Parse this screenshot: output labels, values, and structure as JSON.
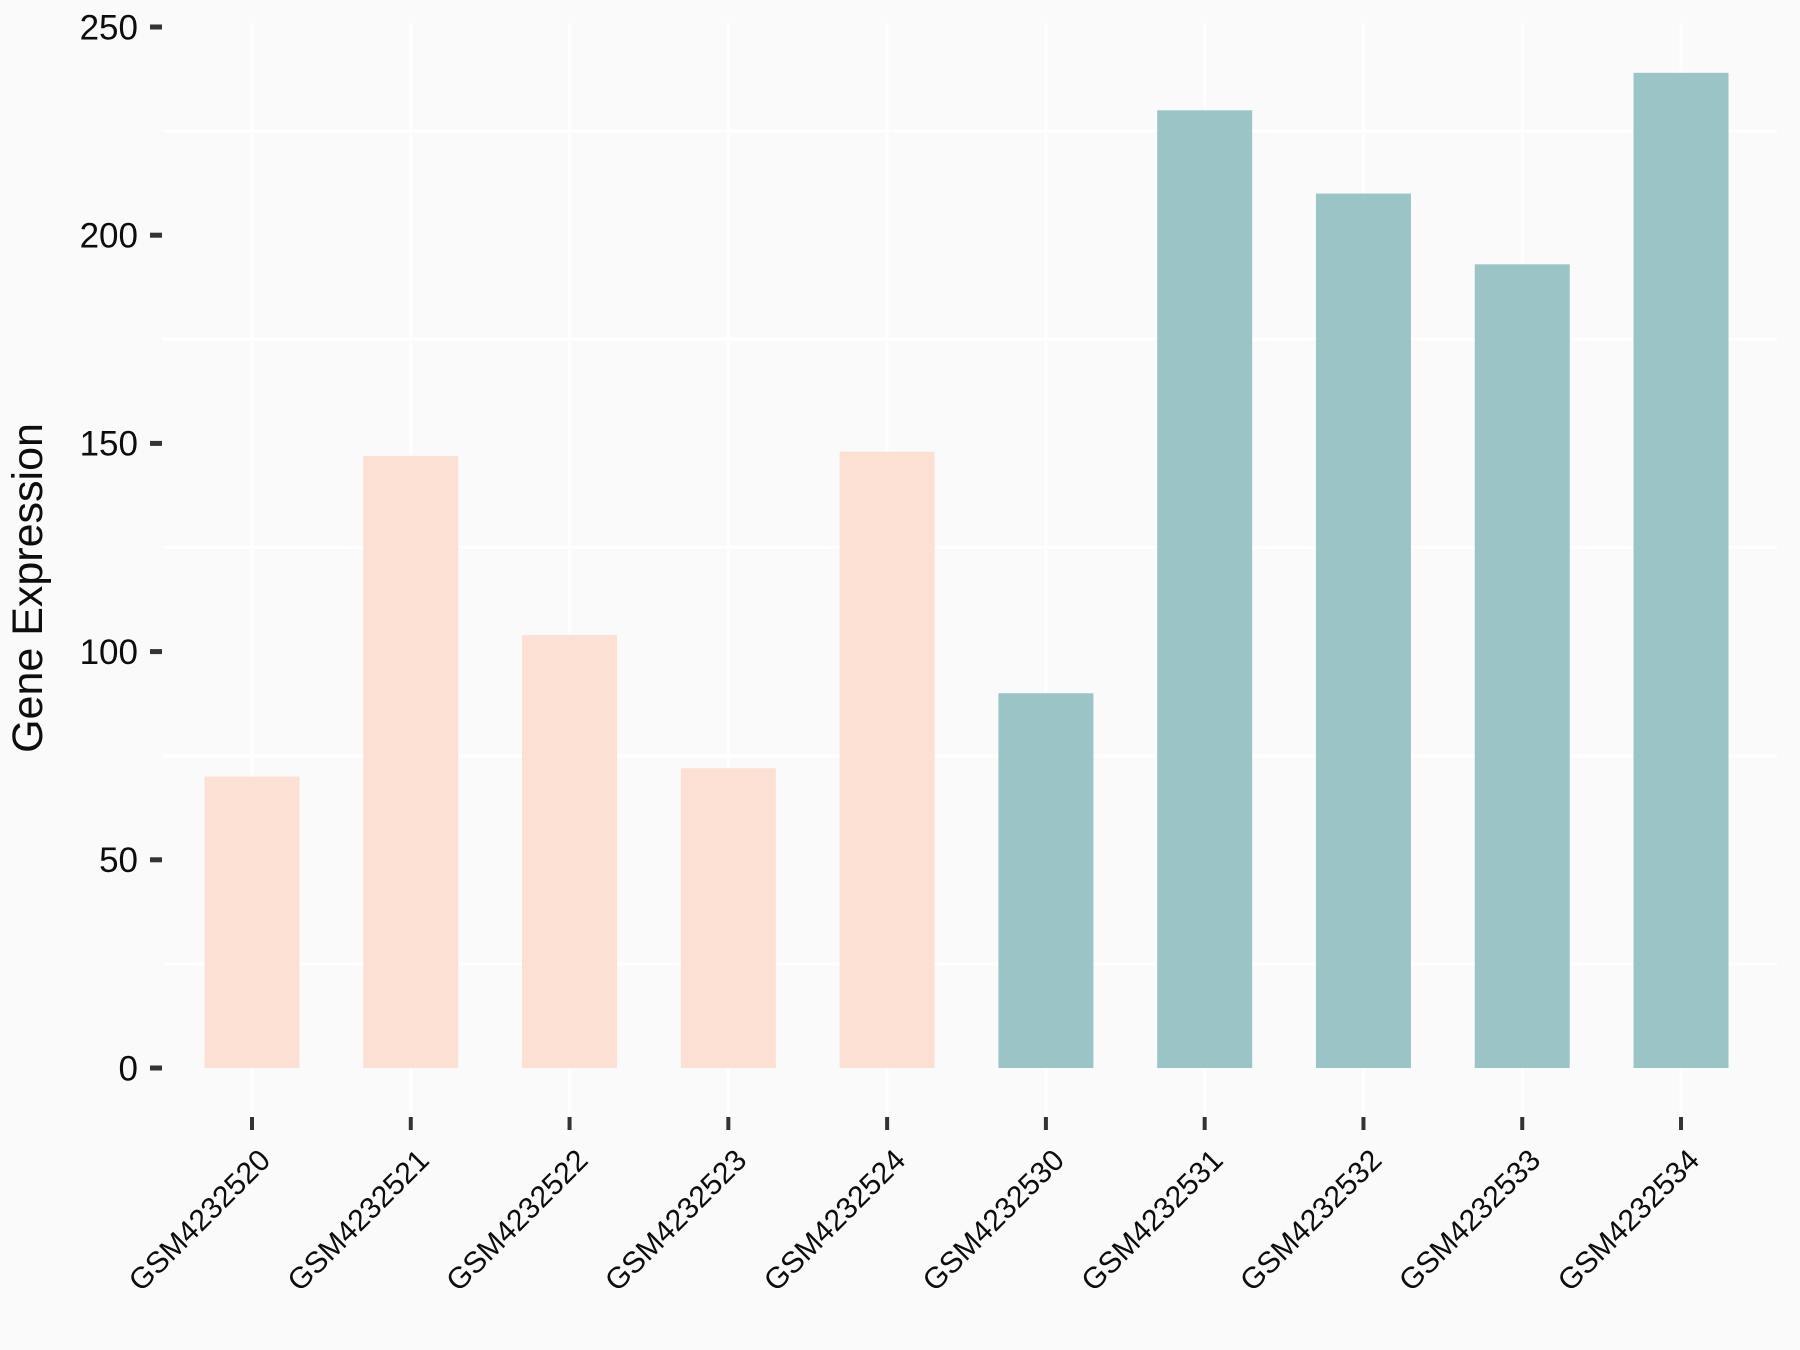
{
  "page": {
    "background_color": "#FAFAFA"
  },
  "chart_data": {
    "type": "bar",
    "title": "",
    "xlabel": "",
    "ylabel": "Gene Expression",
    "categories": [
      "GSM4232520",
      "GSM4232521",
      "GSM4232522",
      "GSM4232523",
      "GSM4232524",
      "GSM4232530",
      "GSM4232531",
      "GSM4232532",
      "GSM4232533",
      "GSM4232534"
    ],
    "values": [
      70,
      147,
      104,
      72,
      148,
      90,
      230,
      210,
      193,
      239
    ],
    "bar_colors": [
      "#FCE0D4",
      "#FCE0D4",
      "#FCE0D4",
      "#FCE0D4",
      "#FCE0D4",
      "#9BC4C7",
      "#9BC4C7",
      "#9BC4C7",
      "#9BC4C7",
      "#9BC4C7"
    ],
    "y_ticks": [
      0,
      50,
      100,
      150,
      200,
      250
    ],
    "y_minor_gridlines": [
      25,
      75,
      125,
      175,
      225
    ],
    "ylim": [
      0,
      250
    ],
    "grid": "minor horizontal white lines + vertical white lines at category centers",
    "legend_position": "none",
    "x_tick_label_rotation_deg": 45
  },
  "colors": {
    "peach_group": "#FCE0D4",
    "teal_group": "#9BC4C7",
    "background": "#FAFAFA",
    "gridline": "#FFFFFF",
    "tick_mark": "#333333",
    "text": "#0D0D0D"
  }
}
